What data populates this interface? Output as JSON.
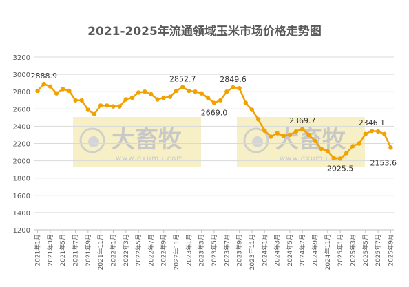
{
  "colors": {
    "line": "#F0A202",
    "marker": "#F0A202",
    "watermark_bg": "#F7F0C6"
  },
  "watermark": {
    "brand": "大畜牧",
    "url": "www.dxumu.com"
  },
  "chart_data": {
    "type": "line",
    "title": "2021-2025年流通领域玉米市场价格走势图",
    "xlabel": "",
    "ylabel": "",
    "ylim": [
      1200,
      3200
    ],
    "yticks": [
      1200,
      1400,
      1600,
      1800,
      2000,
      2200,
      2400,
      2600,
      2800,
      3000,
      3200
    ],
    "grid": true,
    "legend": "none",
    "x": [
      "2021年1月",
      "2021年2月",
      "2021年3月",
      "2021年4月",
      "2021年5月",
      "2021年6月",
      "2021年7月",
      "2021年8月",
      "2021年9月",
      "2021年10月",
      "2021年11月",
      "2021年12月",
      "2022年1月",
      "2022年2月",
      "2022年3月",
      "2022年4月",
      "2022年5月",
      "2022年6月",
      "2022年7月",
      "2022年8月",
      "2022年9月",
      "2022年10月",
      "2022年11月",
      "2022年12月",
      "2023年1月",
      "2023年2月",
      "2023年3月",
      "2023年4月",
      "2023年5月",
      "2023年6月",
      "2023年7月",
      "2023年8月",
      "2023年9月",
      "2023年10月",
      "2023年11月",
      "2023年12月",
      "2024年1月",
      "2024年2月",
      "2024年3月",
      "2024年4月",
      "2024年5月",
      "2024年6月",
      "2024年7月",
      "2024年8月",
      "2024年9月",
      "2024年10月",
      "2024年11月",
      "2024年12月",
      "2025年1月",
      "2025年2月",
      "2025年3月",
      "2025年4月",
      "2025年5月",
      "2025年6月",
      "2025年7月",
      "2025年8月",
      "2025年9月"
    ],
    "xtick_labels": [
      "2021年1月",
      "2021年3月",
      "2021年5月",
      "2021年7月",
      "2021年9月",
      "2021年11月",
      "2022年1月",
      "2022年3月",
      "2022年5月",
      "2022年7月",
      "2022年9月",
      "2022年11月",
      "2023年1月",
      "2023年3月",
      "2023年5月",
      "2023年7月",
      "2023年9月",
      "2023年11月",
      "2024年1月",
      "2024年3月",
      "2024年5月",
      "2024年7月",
      "2024年9月",
      "2024年11月",
      "2025年1月",
      "2025年3月",
      "2025年5月",
      "2025年7月",
      "2025年9月"
    ],
    "series": [
      {
        "values": [
          2810,
          2888.9,
          2860,
          2780,
          2830,
          2810,
          2700,
          2700,
          2590,
          2540,
          2640,
          2640,
          2630,
          2630,
          2710,
          2730,
          2790,
          2800,
          2770,
          2710,
          2730,
          2740,
          2810,
          2852.7,
          2810,
          2800,
          2780,
          2730,
          2669.0,
          2700,
          2800,
          2849.6,
          2840,
          2670,
          2590,
          2480,
          2350,
          2280,
          2320,
          2290,
          2300,
          2340,
          2369.7,
          2300,
          2230,
          2140,
          2110,
          2030,
          2025.5,
          2090,
          2170,
          2200,
          2310,
          2346.1,
          2340,
          2310,
          2153.6
        ]
      }
    ],
    "data_labels": [
      {
        "index": 1,
        "text": "2888.9"
      },
      {
        "index": 23,
        "text": "2852.7"
      },
      {
        "index": 28,
        "text": "2669.0"
      },
      {
        "index": 31,
        "text": "2849.6"
      },
      {
        "index": 42,
        "text": "2369.7"
      },
      {
        "index": 48,
        "text": "2025.5"
      },
      {
        "index": 53,
        "text": "2346.1"
      },
      {
        "index": 56,
        "text": "2153.6"
      }
    ]
  }
}
